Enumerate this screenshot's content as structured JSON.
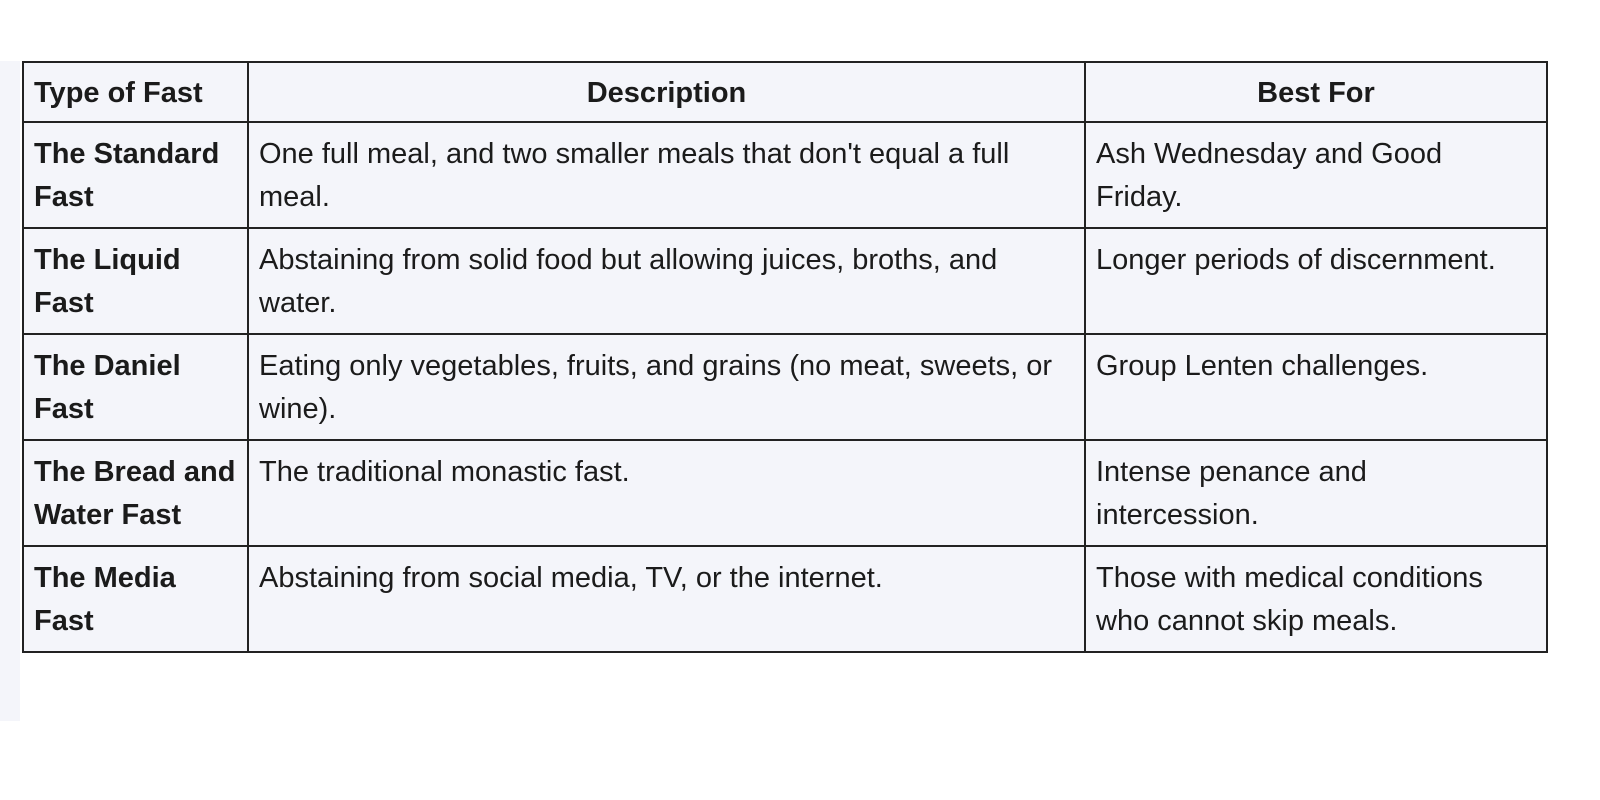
{
  "table": {
    "headers": [
      "Type of Fast",
      "Description",
      "Best For"
    ],
    "rows": [
      {
        "type": "The Standard Fast",
        "description": "One full meal, and two smaller meals that don't equal a full meal.",
        "best_for": "Ash Wednesday and Good Friday."
      },
      {
        "type": "The Liquid Fast",
        "description": "Abstaining from solid food but allowing juices, broths, and water.",
        "best_for": "Longer periods of discernment."
      },
      {
        "type": "The Daniel Fast",
        "description": "Eating only vegetables, fruits, and grains (no meat, sweets, or wine).",
        "best_for": "Group Lenten challenges."
      },
      {
        "type": "The Bread and Water Fast",
        "description": "The traditional monastic fast.",
        "best_for": "Intense penance and intercession."
      },
      {
        "type": "The Media Fast",
        "description": "Abstaining from social media, TV, or the internet.",
        "best_for": "Those with medical conditions who cannot skip meals."
      }
    ]
  }
}
